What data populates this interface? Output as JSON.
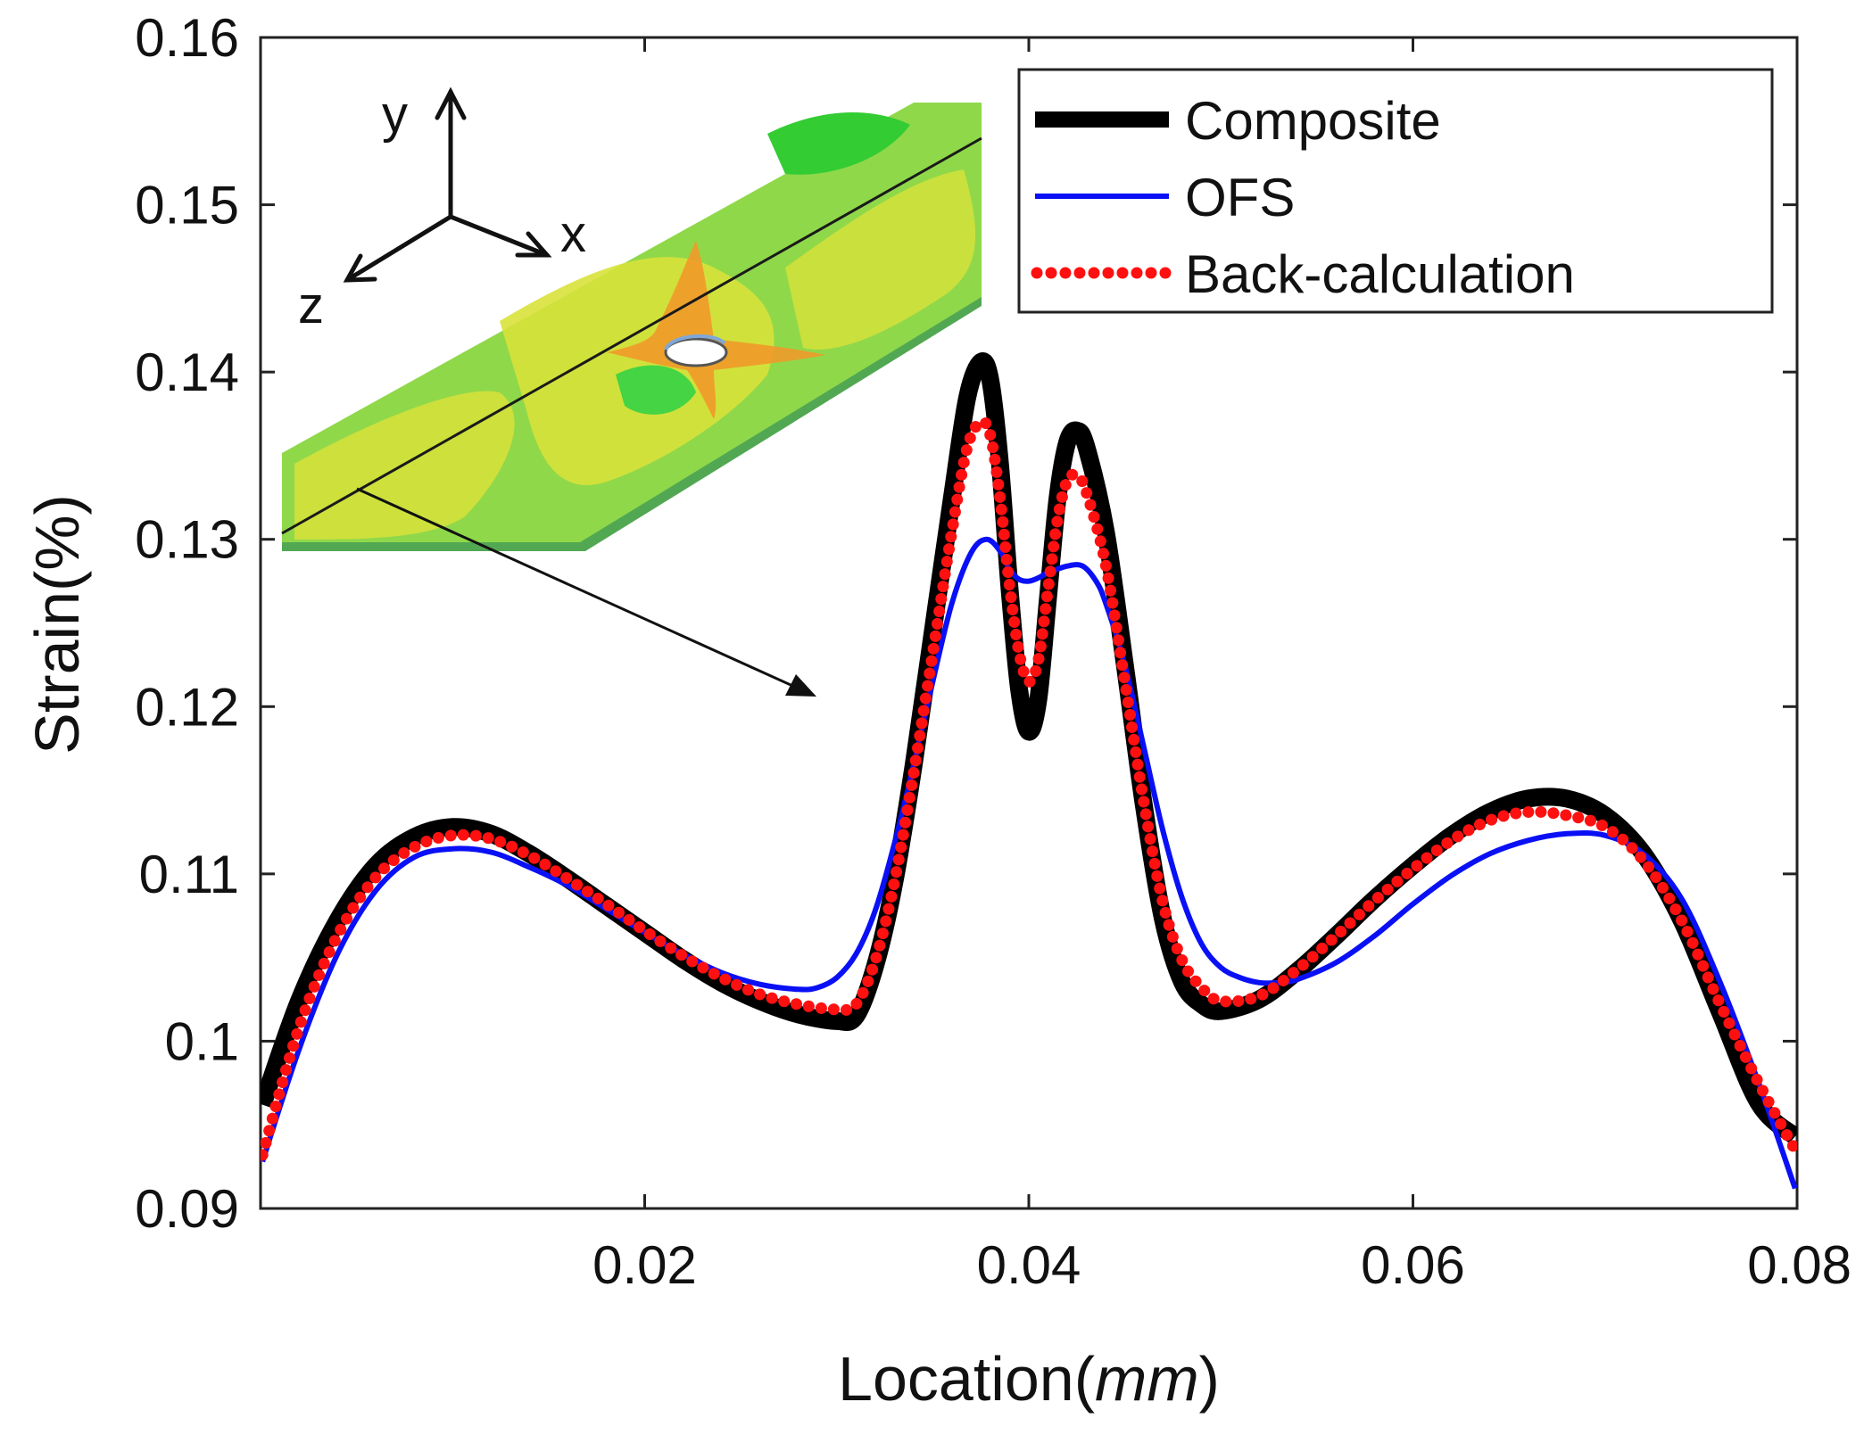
{
  "chart_data": {
    "type": "line",
    "title": "",
    "xlabel": "Location",
    "xlabel_unit": "mm",
    "ylabel": "Strain(%)",
    "xlim": [
      0.0,
      0.08
    ],
    "ylim": [
      0.09,
      0.16
    ],
    "xticks": [
      0.02,
      0.04,
      0.06,
      0.08
    ],
    "xtick_labels": [
      "0.02",
      "0.04",
      "0.06",
      "0.08"
    ],
    "yticks": [
      0.09,
      0.1,
      0.11,
      0.12,
      0.13,
      0.14,
      0.15,
      0.16
    ],
    "ytick_labels": [
      "0.09",
      "0.1",
      "0.11",
      "0.12",
      "0.13",
      "0.14",
      "0.15",
      "0.16"
    ],
    "grid": false,
    "legend_position": "top-right",
    "series": [
      {
        "name": "Composite",
        "color": "#000000",
        "style": "thick-solid",
        "x": [
          0.0001,
          0.002,
          0.004,
          0.006,
          0.008,
          0.01,
          0.012,
          0.014,
          0.016,
          0.018,
          0.02,
          0.022,
          0.024,
          0.026,
          0.028,
          0.03,
          0.031,
          0.032,
          0.033,
          0.034,
          0.035,
          0.036,
          0.0368,
          0.0375,
          0.038,
          0.0385,
          0.039,
          0.0395,
          0.04,
          0.0405,
          0.041,
          0.0415,
          0.042,
          0.0425,
          0.043,
          0.044,
          0.045,
          0.046,
          0.047,
          0.048,
          0.049,
          0.05,
          0.052,
          0.054,
          0.056,
          0.058,
          0.06,
          0.062,
          0.064,
          0.066,
          0.068,
          0.07,
          0.072,
          0.074,
          0.076,
          0.078,
          0.0799
        ],
        "y": [
          0.0962,
          0.1024,
          0.1072,
          0.1105,
          0.1122,
          0.1128,
          0.1124,
          0.1112,
          0.1097,
          0.1081,
          0.1065,
          0.1049,
          0.1035,
          0.1024,
          0.1016,
          0.1012,
          0.1015,
          0.1045,
          0.1095,
          0.1165,
          0.1245,
          0.1325,
          0.1385,
          0.1406,
          0.1395,
          0.1345,
          0.127,
          0.121,
          0.1185,
          0.1205,
          0.1265,
          0.1325,
          0.1358,
          0.1365,
          0.1355,
          0.1305,
          0.1225,
          0.114,
          0.1072,
          0.1035,
          0.1022,
          0.1018,
          0.1025,
          0.1042,
          0.1063,
          0.1085,
          0.1105,
          0.1123,
          0.1137,
          0.1145,
          0.1145,
          0.1135,
          0.1112,
          0.1072,
          0.1017,
          0.0963,
          0.0943
        ]
      },
      {
        "name": "OFS",
        "color": "#0a10f5",
        "style": "solid",
        "x": [
          0.0001,
          0.002,
          0.004,
          0.006,
          0.008,
          0.01,
          0.012,
          0.014,
          0.016,
          0.018,
          0.02,
          0.022,
          0.024,
          0.026,
          0.028,
          0.029,
          0.03,
          0.031,
          0.032,
          0.033,
          0.034,
          0.035,
          0.036,
          0.037,
          0.0378,
          0.0385,
          0.039,
          0.0395,
          0.04,
          0.0405,
          0.041,
          0.042,
          0.0428,
          0.0435,
          0.044,
          0.045,
          0.046,
          0.047,
          0.048,
          0.049,
          0.05,
          0.051,
          0.052,
          0.053,
          0.054,
          0.056,
          0.058,
          0.06,
          0.062,
          0.064,
          0.066,
          0.068,
          0.07,
          0.072,
          0.074,
          0.076,
          0.078,
          0.0799
        ],
        "y": [
          0.0928,
          0.0995,
          0.1052,
          0.109,
          0.111,
          0.1115,
          0.1113,
          0.1104,
          0.1093,
          0.1079,
          0.1065,
          0.1052,
          0.1041,
          0.1034,
          0.1031,
          0.1032,
          0.1038,
          0.1052,
          0.1078,
          0.1118,
          0.1165,
          0.1215,
          0.1262,
          0.1292,
          0.13,
          0.1293,
          0.1282,
          0.1276,
          0.1275,
          0.1277,
          0.128,
          0.1284,
          0.1284,
          0.1275,
          0.1262,
          0.1225,
          0.1175,
          0.1125,
          0.1085,
          0.1058,
          0.1044,
          0.1038,
          0.1035,
          0.1035,
          0.1037,
          0.1047,
          0.1063,
          0.1082,
          0.1099,
          0.1112,
          0.112,
          0.1124,
          0.1123,
          0.1112,
          0.1085,
          0.1035,
          0.0975,
          0.0912
        ]
      },
      {
        "name": "Back-calculation",
        "color": "#ff1010",
        "style": "dotted",
        "x": [
          0.0001,
          0.002,
          0.004,
          0.006,
          0.008,
          0.01,
          0.012,
          0.014,
          0.016,
          0.018,
          0.02,
          0.022,
          0.024,
          0.026,
          0.028,
          0.03,
          0.031,
          0.032,
          0.033,
          0.034,
          0.035,
          0.036,
          0.0368,
          0.0375,
          0.038,
          0.0385,
          0.039,
          0.0395,
          0.04,
          0.0405,
          0.041,
          0.0415,
          0.042,
          0.0425,
          0.043,
          0.044,
          0.045,
          0.046,
          0.047,
          0.048,
          0.049,
          0.05,
          0.052,
          0.054,
          0.056,
          0.058,
          0.06,
          0.062,
          0.064,
          0.066,
          0.068,
          0.07,
          0.072,
          0.074,
          0.076,
          0.078,
          0.0799
        ],
        "y": [
          0.0932,
          0.1008,
          0.1063,
          0.1098,
          0.1116,
          0.1123,
          0.1121,
          0.1111,
          0.1097,
          0.1082,
          0.1066,
          0.1051,
          0.1038,
          0.1028,
          0.1022,
          0.1019,
          0.1022,
          0.1048,
          0.1095,
          0.116,
          0.1232,
          0.1305,
          0.1355,
          0.137,
          0.1362,
          0.1325,
          0.1272,
          0.1232,
          0.1215,
          0.1228,
          0.127,
          0.1312,
          0.1335,
          0.1338,
          0.1328,
          0.1285,
          0.1215,
          0.1142,
          0.1082,
          0.1048,
          0.1032,
          0.1024,
          0.1027,
          0.1043,
          0.1063,
          0.1084,
          0.1103,
          0.112,
          0.1132,
          0.1137,
          0.1135,
          0.1128,
          0.1108,
          0.1072,
          0.1022,
          0.0975,
          0.0935
        ]
      }
    ],
    "inset": {
      "axis_labels": [
        "y",
        "x",
        "z"
      ]
    }
  }
}
